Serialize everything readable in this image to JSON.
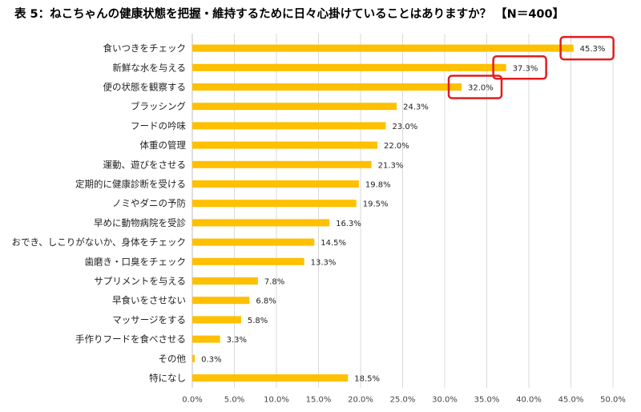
{
  "title": "表 5：ねこちゃんの健康状態を把握・維持するために日々心掛けていることはありますか？ 【N＝400】",
  "chart_data": {
    "type": "bar",
    "orientation": "horizontal",
    "title": "表 5：ねこちゃんの健康状態を把握・維持するために日々心掛けていることはありますか？ 【N＝400】",
    "categories": [
      "食いつきをチェック",
      "新鮮な水を与える",
      "便の状態を観察する",
      "ブラッシング",
      "フードの吟味",
      "体重の管理",
      "運動、遊びをさせる",
      "定期的に健康診断を受ける",
      "ノミやダニの予防",
      "早めに動物病院を受診",
      "おでき、しこりがないか、身体をチェック",
      "歯磨き・口臭をチェック",
      "サプリメントを与える",
      "早食いをさせない",
      "マッサージをする",
      "手作りフードを食べさせる",
      "その他",
      "特になし"
    ],
    "values": [
      45.3,
      37.3,
      32.0,
      24.3,
      23.0,
      22.0,
      21.3,
      19.8,
      19.5,
      16.3,
      14.5,
      13.3,
      7.8,
      6.8,
      5.8,
      3.3,
      0.3,
      18.5
    ],
    "value_labels": [
      "45.3%",
      "37.3%",
      "32.0%",
      "24.3%",
      "23.0%",
      "22.0%",
      "21.3%",
      "19.8%",
      "19.5%",
      "16.3%",
      "14.5%",
      "13.3%",
      "7.8%",
      "6.8%",
      "5.8%",
      "3.3%",
      "0.3%",
      "18.5%"
    ],
    "xlim": [
      0,
      50
    ],
    "xticks": [
      "0.0%",
      "5.0%",
      "10.0%",
      "15.0%",
      "20.0%",
      "25.0%",
      "30.0%",
      "35.0%",
      "40.0%",
      "45.0%",
      "50.0%"
    ],
    "grid": true,
    "highlighted_indices": [
      0,
      1,
      2
    ],
    "colors": {
      "bar": "#FFC000",
      "highlight_box": "#E01E1E",
      "grid": "#D9D9D9",
      "axis": "#BFBFBF"
    }
  }
}
